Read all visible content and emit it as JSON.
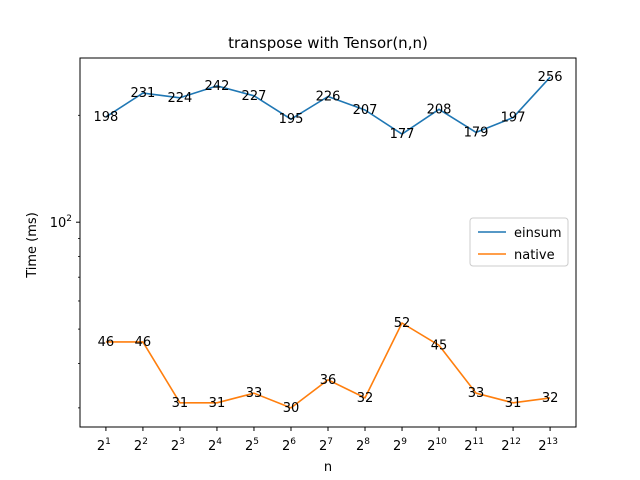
{
  "chart_data": {
    "type": "line",
    "title": "transpose with Tensor(n,n)",
    "xlabel": "n",
    "ylabel": "Time (ms)",
    "yscale": "log",
    "ylim": [
      26.5,
      290
    ],
    "categories": [
      "2^1",
      "2^2",
      "2^3",
      "2^4",
      "2^5",
      "2^6",
      "2^7",
      "2^8",
      "2^9",
      "2^10",
      "2^11",
      "2^12",
      "2^13"
    ],
    "x_ticks": [
      {
        "base": "2",
        "exp": "1"
      },
      {
        "base": "2",
        "exp": "2"
      },
      {
        "base": "2",
        "exp": "3"
      },
      {
        "base": "2",
        "exp": "4"
      },
      {
        "base": "2",
        "exp": "5"
      },
      {
        "base": "2",
        "exp": "6"
      },
      {
        "base": "2",
        "exp": "7"
      },
      {
        "base": "2",
        "exp": "8"
      },
      {
        "base": "2",
        "exp": "9"
      },
      {
        "base": "2",
        "exp": "10"
      },
      {
        "base": "2",
        "exp": "11"
      },
      {
        "base": "2",
        "exp": "12"
      },
      {
        "base": "2",
        "exp": "13"
      }
    ],
    "y_ticks": [
      {
        "value": 100,
        "base": "10",
        "exp": "2"
      }
    ],
    "series": [
      {
        "name": "einsum",
        "color": "#1f77b4",
        "values": [
          198,
          231,
          224,
          242,
          227,
          195,
          226,
          207,
          177,
          208,
          179,
          197,
          256
        ]
      },
      {
        "name": "native",
        "color": "#ff7f0e",
        "values": [
          46,
          46,
          31,
          31,
          33,
          30,
          36,
          32,
          52,
          45,
          33,
          31,
          32
        ]
      }
    ],
    "legend_position": "center-right",
    "grid": false
  }
}
